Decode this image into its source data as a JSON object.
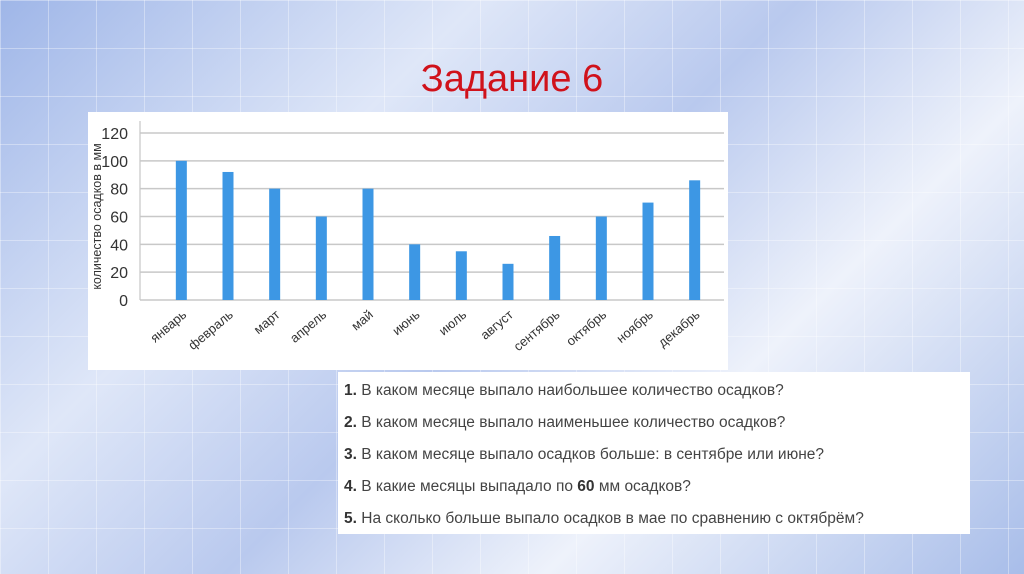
{
  "slide": {
    "title": "Задание 6",
    "title_color": "#d0121b"
  },
  "chart_data": {
    "type": "bar",
    "title": "",
    "ylabel": "количество осадков в мм",
    "xlabel": "",
    "ylim": [
      0,
      120
    ],
    "yticks": [
      0,
      20,
      40,
      60,
      80,
      100,
      120
    ],
    "grid": true,
    "bar_color": "#3d97e4",
    "categories": [
      "январь",
      "февраль",
      "март",
      "апрель",
      "май",
      "июнь",
      "июль",
      "август",
      "сентябрь",
      "октябрь",
      "ноябрь",
      "декабрь"
    ],
    "values": [
      100,
      92,
      80,
      60,
      80,
      40,
      35,
      26,
      46,
      60,
      70,
      86
    ]
  },
  "questions": [
    {
      "num": "1.",
      "text": " В каком месяце выпало наибольшее количество осадков?"
    },
    {
      "num": "2.",
      "text": " В каком месяце выпало наименьшее количество осадков?"
    },
    {
      "num": "3.",
      "text": " В каком месяце выпало осадков больше: в сентябре или июне?"
    },
    {
      "num": "4.",
      "text": " В какие месяцы выпадало по ",
      "bold": "60",
      "tail": " мм осадков?"
    },
    {
      "num": "5.",
      "text": " На сколько больше выпало осадков в мае по сравнению с октябрём?"
    }
  ]
}
